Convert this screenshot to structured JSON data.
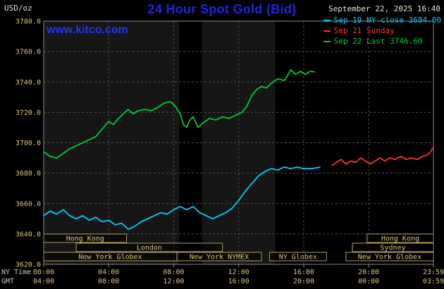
{
  "header": {
    "unit": "USD/oz",
    "title": "24 Hour Spot Gold (Bid)",
    "datetime": "September 22, 2025 16:40",
    "watermark": "www.kitco.com"
  },
  "colors": {
    "title": "#2222dd",
    "watermark": "#2436f0",
    "axis_text": "#d6c382",
    "row_label_text": "#c8c8c8",
    "grid": "#4f4f4f",
    "border": "#8a8a8a",
    "session_border": "#b49e5e",
    "session_text": "#d8c480",
    "band_light": "#161616"
  },
  "bands": [
    {
      "start": 0,
      "end": 8.33,
      "color": "#161616"
    },
    {
      "start": 9.75,
      "end": 14.25,
      "color": "#161616"
    }
  ],
  "axes": {
    "y_ticks": [
      "3780.0",
      "3760.0",
      "3740.0",
      "3720.0",
      "3700.0",
      "3680.0",
      "3660.0",
      "3640.0",
      "3620.0"
    ],
    "x_tick_hours": [
      0,
      4,
      8,
      12,
      16,
      20,
      23.983
    ],
    "x_rows": [
      {
        "label": "NY Time",
        "ticks": [
          "00:00",
          "04:00",
          "08:00",
          "12:00",
          "16:00",
          "20:00",
          "23:59"
        ]
      },
      {
        "label": "GMT",
        "ticks": [
          "04:00",
          "08:00",
          "12:00",
          "16:00",
          "20:00",
          "00:00",
          "03:59"
        ]
      }
    ]
  },
  "sessions": [
    {
      "row": 0,
      "label": "Hong Kong",
      "start": 0,
      "end": 5.1
    },
    {
      "row": 0,
      "label": "Hong Kong",
      "start": 19.9,
      "end": 23.983
    },
    {
      "row": 1,
      "label": "London",
      "start": 2.0,
      "end": 11.0
    },
    {
      "row": 1,
      "label": "Sydney",
      "start": 19.0,
      "end": 23.983
    },
    {
      "row": 2,
      "label": "New York Globex",
      "start": 0,
      "end": 8.2
    },
    {
      "row": 2,
      "label": "New York NYMEX",
      "start": 8.2,
      "end": 13.4
    },
    {
      "row": 2,
      "label": "NY Globex",
      "start": 13.9,
      "end": 17.4
    },
    {
      "row": 2,
      "label": "New York Globex",
      "start": 18.6,
      "end": 23.983
    }
  ],
  "chart_data": {
    "type": "line",
    "title": "24 Hour Spot Gold (Bid)",
    "ylabel": "USD/oz",
    "ylim": [
      3620,
      3780
    ],
    "ytick_step": 20,
    "xlim_hours": [
      0,
      23.983
    ],
    "grid": true,
    "legend_position": "top-right",
    "series": [
      {
        "key": "sep19",
        "name": "Sep 19 NY close 3684.00",
        "color": "#00ccff",
        "points": [
          [
            0,
            3652
          ],
          [
            0.4,
            3655
          ],
          [
            0.8,
            3653
          ],
          [
            1.2,
            3656
          ],
          [
            1.6,
            3652
          ],
          [
            2.0,
            3650
          ],
          [
            2.4,
            3652
          ],
          [
            2.8,
            3649
          ],
          [
            3.2,
            3651
          ],
          [
            3.6,
            3648
          ],
          [
            4.0,
            3649
          ],
          [
            4.4,
            3646
          ],
          [
            4.8,
            3647
          ],
          [
            5.2,
            3643
          ],
          [
            5.6,
            3645
          ],
          [
            6.0,
            3648
          ],
          [
            6.4,
            3650
          ],
          [
            6.8,
            3652
          ],
          [
            7.2,
            3654
          ],
          [
            7.6,
            3653
          ],
          [
            8.0,
            3656
          ],
          [
            8.4,
            3658
          ],
          [
            8.8,
            3656
          ],
          [
            9.2,
            3658
          ],
          [
            9.6,
            3654
          ],
          [
            10.0,
            3652
          ],
          [
            10.4,
            3650
          ],
          [
            10.8,
            3652
          ],
          [
            11.2,
            3654
          ],
          [
            11.6,
            3657
          ],
          [
            12.0,
            3662
          ],
          [
            12.4,
            3668
          ],
          [
            12.8,
            3673
          ],
          [
            13.2,
            3678
          ],
          [
            13.6,
            3681
          ],
          [
            14.0,
            3683
          ],
          [
            14.4,
            3682
          ],
          [
            14.8,
            3684
          ],
          [
            15.2,
            3683
          ],
          [
            15.6,
            3684
          ],
          [
            16.0,
            3683
          ],
          [
            16.5,
            3683
          ],
          [
            17.0,
            3684
          ]
        ]
      },
      {
        "key": "sep21",
        "name": "Sep 21 Sunday",
        "color": "#ff3333",
        "points": [
          [
            17.75,
            3685
          ],
          [
            18.0,
            3687
          ],
          [
            18.3,
            3689
          ],
          [
            18.6,
            3686
          ],
          [
            18.9,
            3688
          ],
          [
            19.2,
            3687
          ],
          [
            19.5,
            3690
          ],
          [
            19.8,
            3688
          ],
          [
            20.1,
            3686
          ],
          [
            20.4,
            3688
          ],
          [
            20.7,
            3690
          ],
          [
            21.0,
            3688
          ],
          [
            21.3,
            3690
          ],
          [
            21.6,
            3689
          ],
          [
            22.0,
            3691
          ],
          [
            22.3,
            3689
          ],
          [
            22.6,
            3690
          ],
          [
            23.0,
            3689
          ],
          [
            23.3,
            3691
          ],
          [
            23.6,
            3692
          ],
          [
            23.8,
            3694
          ],
          [
            23.983,
            3697
          ]
        ]
      },
      {
        "key": "sep22",
        "name": "Sep 22 Last 3746.60",
        "color": "#00cc33",
        "points": [
          [
            0,
            3694
          ],
          [
            0.4,
            3691
          ],
          [
            0.8,
            3690
          ],
          [
            1.2,
            3693
          ],
          [
            1.6,
            3696
          ],
          [
            2.0,
            3698
          ],
          [
            2.4,
            3700
          ],
          [
            2.8,
            3702
          ],
          [
            3.2,
            3704
          ],
          [
            3.6,
            3709
          ],
          [
            4.0,
            3714
          ],
          [
            4.3,
            3712
          ],
          [
            4.6,
            3716
          ],
          [
            5.0,
            3720
          ],
          [
            5.2,
            3722
          ],
          [
            5.5,
            3719
          ],
          [
            5.8,
            3721
          ],
          [
            6.2,
            3722
          ],
          [
            6.6,
            3721
          ],
          [
            7.0,
            3723
          ],
          [
            7.4,
            3726
          ],
          [
            7.8,
            3727
          ],
          [
            8.1,
            3724
          ],
          [
            8.4,
            3719
          ],
          [
            8.6,
            3712
          ],
          [
            8.8,
            3710
          ],
          [
            9.0,
            3715
          ],
          [
            9.2,
            3717
          ],
          [
            9.5,
            3710
          ],
          [
            9.8,
            3713
          ],
          [
            10.2,
            3716
          ],
          [
            10.6,
            3715
          ],
          [
            11.0,
            3717
          ],
          [
            11.4,
            3716
          ],
          [
            11.8,
            3718
          ],
          [
            12.2,
            3720
          ],
          [
            12.5,
            3724
          ],
          [
            12.8,
            3731
          ],
          [
            13.1,
            3735
          ],
          [
            13.4,
            3737
          ],
          [
            13.7,
            3736
          ],
          [
            14.0,
            3739
          ],
          [
            14.4,
            3742
          ],
          [
            14.8,
            3741
          ],
          [
            15.0,
            3744
          ],
          [
            15.2,
            3748
          ],
          [
            15.5,
            3745
          ],
          [
            15.8,
            3747
          ],
          [
            16.1,
            3745
          ],
          [
            16.4,
            3747
          ],
          [
            16.67,
            3746.6
          ]
        ]
      }
    ]
  }
}
